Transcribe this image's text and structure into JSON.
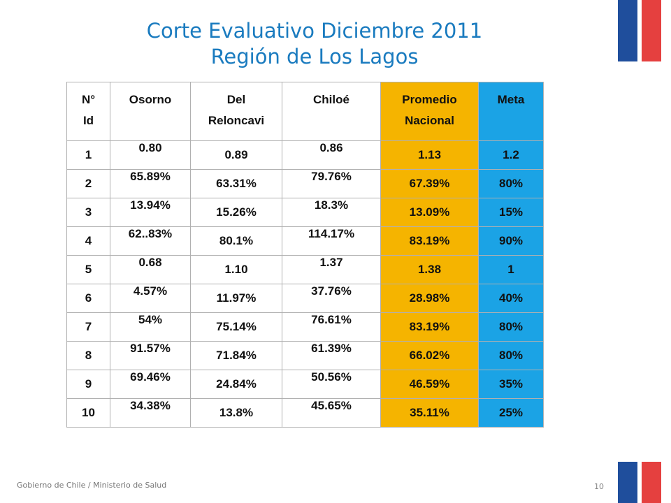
{
  "title": {
    "line1": "Corte Evaluativo Diciembre 2011",
    "line2": "Región de Los Lagos"
  },
  "table": {
    "headers": {
      "id": [
        "N°",
        "Id"
      ],
      "osorno": "Osorno",
      "reloncavi": [
        "Del",
        "Reloncavi"
      ],
      "chiloe": "Chiloé",
      "promedio": [
        "Promedio",
        "Nacional"
      ],
      "meta": "Meta"
    },
    "rows": [
      {
        "id": "1",
        "osorno": "0.80",
        "reloncavi": "0.89",
        "chiloe": "0.86",
        "promedio": "1.13",
        "meta": "1.2"
      },
      {
        "id": "2",
        "osorno": "65.89%",
        "reloncavi": "63.31%",
        "chiloe": "79.76%",
        "promedio": "67.39%",
        "meta": "80%"
      },
      {
        "id": "3",
        "osorno": "13.94%",
        "reloncavi": "15.26%",
        "chiloe": "18.3%",
        "promedio": "13.09%",
        "meta": "15%"
      },
      {
        "id": "4",
        "osorno": "62..83%",
        "reloncavi": "80.1%",
        "chiloe": "114.17%",
        "promedio": "83.19%",
        "meta": "90%"
      },
      {
        "id": "5",
        "osorno": "0.68",
        "reloncavi": "1.10",
        "chiloe": "1.37",
        "promedio": "1.38",
        "meta": "1"
      },
      {
        "id": "6",
        "osorno": "4.57%",
        "reloncavi": "11.97%",
        "chiloe": "37.76%",
        "promedio": "28.98%",
        "meta": "40%"
      },
      {
        "id": "7",
        "osorno": "54%",
        "reloncavi": "75.14%",
        "chiloe": "76.61%",
        "promedio": "83.19%",
        "meta": "80%"
      },
      {
        "id": "8",
        "osorno": "91.57%",
        "reloncavi": "71.84%",
        "chiloe": "61.39%",
        "promedio": "66.02%",
        "meta": "80%"
      },
      {
        "id": "9",
        "osorno": "69.46%",
        "reloncavi": "24.84%",
        "chiloe": "50.56%",
        "promedio": "46.59%",
        "meta": "35%"
      },
      {
        "id": "10",
        "osorno": "34.38%",
        "reloncavi": "13.8%",
        "chiloe": "45.65%",
        "promedio": "35.11%",
        "meta": "25%"
      }
    ]
  },
  "footer": {
    "text": "Gobierno de Chile / Ministerio de Salud",
    "page_number": "10"
  },
  "colors": {
    "title": "#1a7bbf",
    "promedio_column": "#f5b400",
    "meta_column": "#1ba3e5",
    "flag_blue": "#1f4e9c",
    "flag_red": "#e5403f"
  }
}
